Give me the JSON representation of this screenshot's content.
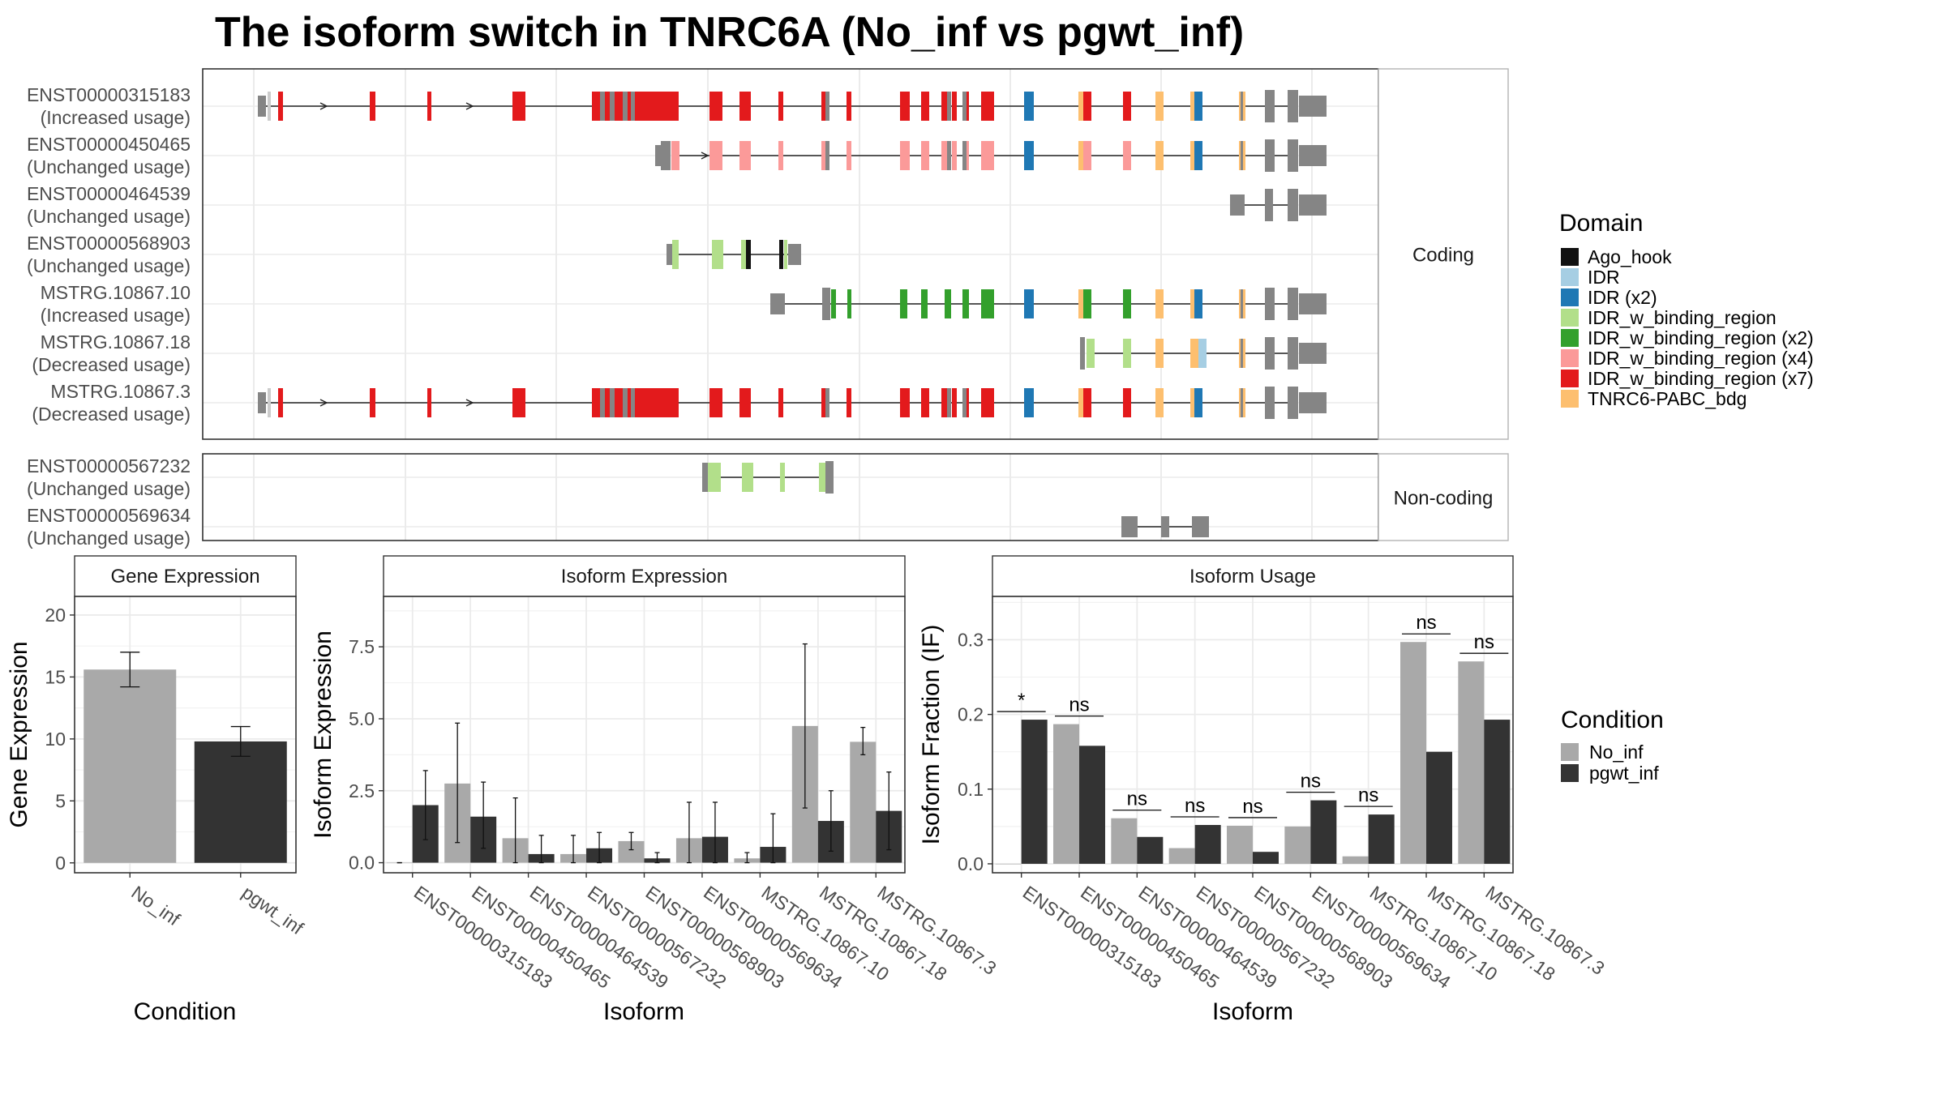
{
  "title": "The isoform switch in TNRC6A (No_inf vs pgwt_inf)",
  "domain_colors": {
    "Ago_hook": "#111111",
    "IDR": "#a6cee3",
    "IDR (x2)": "#1f78b4",
    "IDR_w_binding_region": "#b2df8a",
    "IDR_w_binding_region (x2)": "#33a02c",
    "IDR_w_binding_region (x4)": "#fb9a99",
    "IDR_w_binding_region (x7)": "#e31a1c",
    "TNRC6-PABC_bdg": "#fdbf6f"
  },
  "structure": {
    "coding_label": "Coding",
    "noncoding_label": "Non-coding",
    "coding": [
      {
        "id": "ENST00000315183",
        "status": "(Increased usage)",
        "scheme": "x7"
      },
      {
        "id": "ENST00000450465",
        "status": "(Unchanged usage)",
        "scheme": "x4"
      },
      {
        "id": "ENST00000464539",
        "status": "(Unchanged usage)",
        "scheme": "short"
      },
      {
        "id": "ENST00000568903",
        "status": "(Unchanged usage)",
        "scheme": "small"
      },
      {
        "id": "MSTRG.10867.10",
        "status": "(Increased usage)",
        "scheme": "x2"
      },
      {
        "id": "MSTRG.10867.18",
        "status": "(Decreased usage)",
        "scheme": "x1"
      },
      {
        "id": "MSTRG.10867.3",
        "status": "(Decreased usage)",
        "scheme": "x7"
      }
    ],
    "noncoding": [
      {
        "id": "ENST00000567232",
        "status": "(Unchanged usage)",
        "scheme": "nc1"
      },
      {
        "id": "ENST00000569634",
        "status": "(Unchanged usage)",
        "scheme": "nc2"
      }
    ]
  },
  "legend_domain": {
    "title": "Domain",
    "items": [
      "Ago_hook",
      "IDR",
      "IDR (x2)",
      "IDR_w_binding_region",
      "IDR_w_binding_region (x2)",
      "IDR_w_binding_region (x4)",
      "IDR_w_binding_region (x7)",
      "TNRC6-PABC_bdg"
    ]
  },
  "legend_condition": {
    "title": "Condition",
    "items": [
      {
        "name": "No_inf",
        "color": "#a9a9a9"
      },
      {
        "name": "pgwt_inf",
        "color": "#333333"
      }
    ]
  },
  "chart_data": [
    {
      "type": "bar",
      "title": "Gene Expression",
      "xlabel": "Condition",
      "ylabel": "Gene Expression",
      "categories": [
        "No_inf",
        "pgwt_inf"
      ],
      "values": [
        15.6,
        9.8
      ],
      "errors": [
        [
          14.2,
          17.0
        ],
        [
          8.6,
          11.0
        ]
      ],
      "colors": [
        "#a9a9a9",
        "#333333"
      ],
      "ylim": [
        -0.8,
        21.5
      ],
      "yticks": [
        0,
        5,
        10,
        15,
        20
      ],
      "ytick_labels": [
        "0",
        "5",
        "10",
        "15",
        "20"
      ]
    },
    {
      "type": "bar",
      "title": "Isoform Expression",
      "xlabel": "Isoform",
      "ylabel": "Isoform Expression",
      "categories": [
        "ENST00000315183",
        "ENST00000450465",
        "ENST00000464539",
        "ENST00000567232",
        "ENST00000568903",
        "ENST00000569634",
        "MSTRG.10867.10",
        "MSTRG.10867.18",
        "MSTRG.10867.3"
      ],
      "series": [
        {
          "name": "No_inf",
          "values": [
            0.0,
            2.75,
            0.85,
            0.3,
            0.75,
            0.85,
            0.15,
            4.75,
            4.2
          ],
          "errors": [
            [
              0,
              0
            ],
            [
              0.7,
              4.85
            ],
            [
              0.0,
              2.25
            ],
            [
              0.0,
              0.95
            ],
            [
              0.45,
              1.05
            ],
            [
              0.0,
              2.1
            ],
            [
              0.0,
              0.35
            ],
            [
              1.9,
              7.6
            ],
            [
              3.75,
              4.7
            ]
          ]
        },
        {
          "name": "pgwt_inf",
          "values": [
            2.0,
            1.6,
            0.3,
            0.5,
            0.15,
            0.9,
            0.55,
            1.45,
            1.8
          ],
          "errors": [
            [
              0.8,
              3.2
            ],
            [
              0.5,
              2.8
            ],
            [
              0.0,
              0.95
            ],
            [
              0.0,
              1.05
            ],
            [
              0.0,
              0.35
            ],
            [
              0.0,
              2.1
            ],
            [
              0.0,
              1.7
            ],
            [
              0.4,
              2.5
            ],
            [
              0.45,
              3.15
            ]
          ]
        }
      ],
      "ylim": [
        -0.35,
        9.25
      ],
      "yticks": [
        0.0,
        2.5,
        5.0,
        7.5
      ],
      "ytick_labels": [
        "0.0",
        "2.5",
        "5.0",
        "7.5"
      ]
    },
    {
      "type": "bar",
      "title": "Isoform Usage",
      "xlabel": "Isoform",
      "ylabel": "Isoform Fraction (IF)",
      "categories": [
        "ENST00000315183",
        "ENST00000450465",
        "ENST00000464539",
        "ENST00000567232",
        "ENST00000568903",
        "ENST00000569634",
        "MSTRG.10867.10",
        "MSTRG.10867.18",
        "MSTRG.10867.3"
      ],
      "series": [
        {
          "name": "No_inf",
          "values": [
            0.0,
            0.187,
            0.061,
            0.021,
            0.051,
            0.05,
            0.01,
            0.297,
            0.271
          ]
        },
        {
          "name": "pgwt_inf",
          "values": [
            0.193,
            0.158,
            0.036,
            0.052,
            0.016,
            0.085,
            0.066,
            0.15,
            0.193
          ]
        }
      ],
      "significance": [
        "*",
        "ns",
        "ns",
        "ns",
        "ns",
        "ns",
        "ns",
        "ns",
        "ns"
      ],
      "ylim": [
        -0.012,
        0.358
      ],
      "yticks": [
        0.0,
        0.1,
        0.2,
        0.3
      ],
      "ytick_labels": [
        "0.0",
        "0.1",
        "0.2",
        "0.3"
      ]
    }
  ]
}
